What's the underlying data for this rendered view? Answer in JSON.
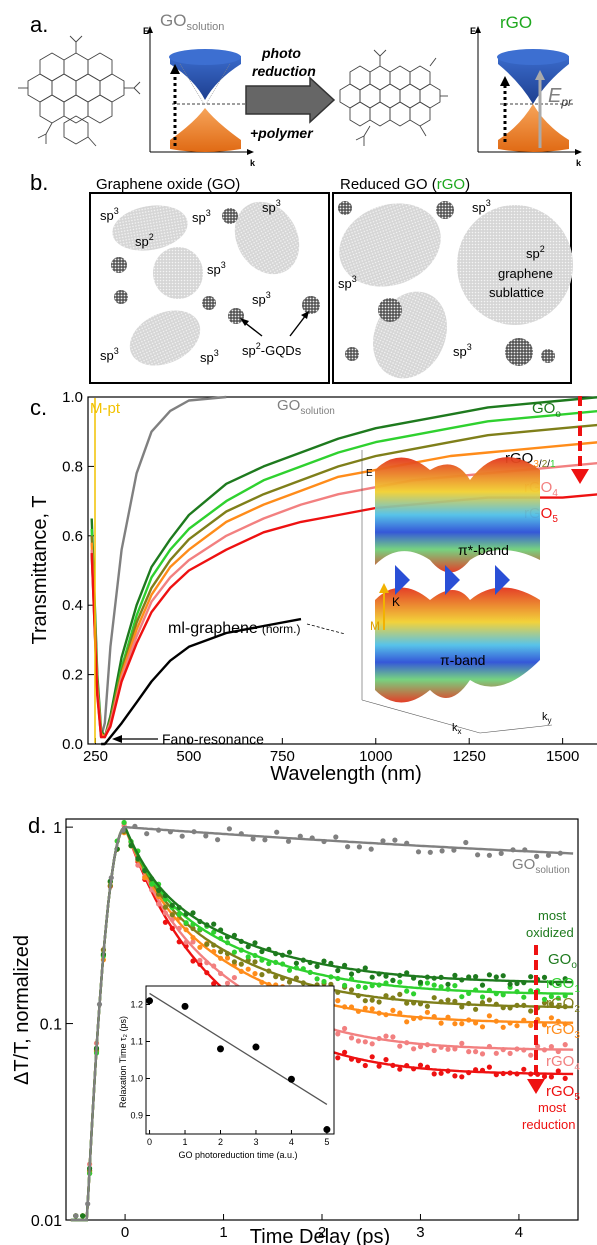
{
  "panel_a": {
    "label": "a.",
    "go_solution": "GO",
    "go_solution_sub": "solution",
    "arrow_top": "photo",
    "arrow_mid": "reduction",
    "arrow_bot": "+polymer",
    "rgo": "rGO",
    "axis_e": "E",
    "axis_k": "k",
    "epr": "E",
    "epr_sub": "pr"
  },
  "panel_b": {
    "label": "b.",
    "left_title": "Graphene oxide (GO)",
    "right_title_pre": "Reduced GO (",
    "right_title_hl": "rGO",
    "right_title_post": ")",
    "sp3": "sp",
    "sp3_sup": "3",
    "sp2": "sp",
    "sp2_sup": "2",
    "gqd": "sp",
    "gqd_sup": "2",
    "gqd_post": "-GQDs",
    "graphene": "graphene",
    "sublattice": "sublattice"
  },
  "panel_c": {
    "label": "c.",
    "mpt": "M-pt",
    "go_solution": "GO",
    "go_solution_sub": "solution",
    "go0": "GO",
    "go0_sub": "o",
    "rgo321_pre": "rGO",
    "rgo321_3": "3",
    "rgo321_2": "2",
    "rgo321_1": "1",
    "rgo4": "rGO",
    "rgo4_sub": "4",
    "rgo5": "rGO",
    "rgo5_sub": "5",
    "mlg": "ml-graphene",
    "norm": "(norm.)",
    "fano": "Fano-resonance",
    "inset_pi_star": "π*-band",
    "inset_pi": "π-band",
    "inset_e": "E",
    "inset_m": "M",
    "inset_k": "K",
    "inset_kx": "k",
    "inset_kx_sub": "x",
    "inset_ky": "k",
    "inset_ky_sub": "y"
  },
  "panel_d": {
    "label": "d.",
    "go_solution": "GO",
    "go_solution_sub": "solution",
    "most_oxidized_1": "most",
    "most_oxidized_2": "oxidized",
    "go0": "GO",
    "go0_sub": "o",
    "rgo1": "rGO",
    "rgo1_sub": "1",
    "rgo2": "rGO",
    "rgo2_sub": "2",
    "rgo3": "rGO",
    "rgo3_sub": "3",
    "rgo4": "rGO",
    "rgo4_sub": "4",
    "rgo5": "rGO",
    "rgo5_sub": "5",
    "most_reduction_1": "most",
    "most_reduction_2": "reduction"
  },
  "colors": {
    "gray": "#808080",
    "go0": "#1e7a1e",
    "rgo1": "#2fd12f",
    "rgo2": "#7f7f1a",
    "rgo3": "#ff8c1a",
    "rgo4": "#f28080",
    "rgo5": "#ee1111",
    "mlg": "#000000",
    "mpt": "#f2c200",
    "blue_cone": "#3d6fd1",
    "orange_cone": "#f0822a",
    "arrow_red": "#ee1111"
  },
  "chart_data": [
    {
      "type": "line",
      "title": "",
      "xlabel": "Wavelength (nm)",
      "ylabel": "Transmittance, T",
      "xlim": [
        230,
        1600
      ],
      "ylim": [
        0.0,
        1.0
      ],
      "xticks": [
        250,
        500,
        750,
        1000,
        1250,
        1500
      ],
      "xtick_labels": [
        "250",
        "500",
        "750",
        "1000",
        "1250",
        "1500"
      ],
      "yticks": [
        0.0,
        0.2,
        0.4,
        0.6,
        0.8,
        1.0
      ],
      "ytick_labels": [
        "0.0",
        "0.2",
        "0.4",
        "0.6",
        "0.8",
        "1.0"
      ],
      "x": [
        240,
        255,
        265,
        275,
        290,
        320,
        360,
        400,
        450,
        500,
        600,
        700,
        800,
        900,
        1000,
        1100,
        1200,
        1300,
        1400,
        1500,
        1600
      ],
      "series": [
        {
          "key": "go_solution",
          "values": [
            0.55,
            0.15,
            0.02,
            0.06,
            0.28,
            0.56,
            0.78,
            0.9,
            0.96,
            0.99,
            1.0,
            null,
            null,
            null,
            null,
            null,
            null,
            null,
            null,
            null,
            null
          ]
        },
        {
          "key": "go0",
          "values": [
            0.65,
            0.2,
            0.04,
            0.02,
            0.08,
            0.25,
            0.4,
            0.51,
            0.59,
            0.66,
            0.75,
            0.8,
            0.84,
            0.88,
            0.91,
            0.93,
            0.95,
            0.97,
            0.98,
            0.99,
            1.0
          ]
        },
        {
          "key": "rgo1",
          "values": [
            0.62,
            0.18,
            0.03,
            0.02,
            0.07,
            0.22,
            0.37,
            0.48,
            0.56,
            0.62,
            0.7,
            0.76,
            0.8,
            0.84,
            0.87,
            0.89,
            0.91,
            0.93,
            0.94,
            0.95,
            0.96
          ]
        },
        {
          "key": "rgo2",
          "values": [
            0.6,
            0.17,
            0.03,
            0.02,
            0.07,
            0.21,
            0.35,
            0.45,
            0.53,
            0.59,
            0.67,
            0.72,
            0.76,
            0.8,
            0.83,
            0.85,
            0.87,
            0.89,
            0.9,
            0.91,
            0.92
          ]
        },
        {
          "key": "rgo3",
          "values": [
            0.58,
            0.16,
            0.03,
            0.02,
            0.06,
            0.2,
            0.33,
            0.43,
            0.51,
            0.56,
            0.64,
            0.69,
            0.73,
            0.77,
            0.79,
            0.81,
            0.83,
            0.84,
            0.85,
            0.86,
            0.87
          ]
        },
        {
          "key": "rgo4",
          "values": [
            0.56,
            0.15,
            0.02,
            0.02,
            0.06,
            0.19,
            0.31,
            0.41,
            0.48,
            0.53,
            0.6,
            0.65,
            0.69,
            0.72,
            0.74,
            0.76,
            0.77,
            0.78,
            0.79,
            0.8,
            0.81
          ]
        },
        {
          "key": "rgo5",
          "values": [
            0.55,
            0.14,
            0.02,
            0.02,
            0.05,
            0.18,
            0.29,
            0.38,
            0.45,
            0.5,
            0.56,
            0.61,
            0.64,
            0.66,
            0.68,
            0.69,
            0.7,
            0.71,
            0.71,
            0.71,
            0.72
          ]
        },
        {
          "key": "mlg",
          "values": [
            null,
            null,
            0.0,
            0.0,
            0.02,
            0.06,
            0.12,
            0.18,
            0.24,
            0.28,
            0.32,
            0.34,
            0.36,
            null,
            null,
            null,
            null,
            null,
            null,
            null,
            null
          ]
        }
      ]
    },
    {
      "type": "scatter",
      "title": "",
      "xlabel": "Time Delay (ps)",
      "ylabel": "ΔT/T, normalized",
      "yscale": "log",
      "xlim": [
        -0.6,
        4.6
      ],
      "ylim": [
        0.01,
        1.1
      ],
      "xticks": [
        0,
        1,
        2,
        3,
        4
      ],
      "xtick_labels": [
        "0",
        "1",
        "2",
        "3",
        "4"
      ],
      "yticks": [
        0.01,
        0.1,
        1
      ],
      "ytick_labels": [
        "0.01",
        "0.1",
        "1"
      ],
      "series": [
        {
          "key": "go_solution",
          "plateau": 1.0,
          "end": 0.5,
          "tau": 6.0
        },
        {
          "key": "go0",
          "end": 0.16,
          "tau": 0.9
        },
        {
          "key": "rgo1",
          "end": 0.14,
          "tau": 0.85
        },
        {
          "key": "rgo2",
          "end": 0.12,
          "tau": 0.8
        },
        {
          "key": "rgo3",
          "end": 0.1,
          "tau": 0.75
        },
        {
          "key": "rgo4",
          "end": 0.073,
          "tau": 0.7
        },
        {
          "key": "rgo5",
          "end": 0.055,
          "tau": 0.65
        }
      ]
    },
    {
      "type": "scatter",
      "title": "",
      "xlabel": "GO photoreduction time (a.u.)",
      "ylabel": "Relaxation Time τ₂ (ps)",
      "xlim": [
        -0.1,
        5.2
      ],
      "ylim": [
        0.85,
        1.25
      ],
      "xticks": [
        0,
        1,
        2,
        3,
        4,
        5
      ],
      "xtick_labels": [
        "0",
        "1",
        "2",
        "3",
        "4",
        "5"
      ],
      "yticks": [
        0.9,
        1.0,
        1.1,
        1.2
      ],
      "ytick_labels": [
        "0.9",
        "1.0",
        "1.1",
        "1.2"
      ],
      "x": [
        0,
        1,
        2,
        3,
        4,
        5
      ],
      "values": [
        1.21,
        1.195,
        1.08,
        1.085,
        0.998,
        0.862
      ],
      "fit": [
        [
          0,
          1.23
        ],
        [
          5,
          0.93
        ]
      ]
    }
  ]
}
